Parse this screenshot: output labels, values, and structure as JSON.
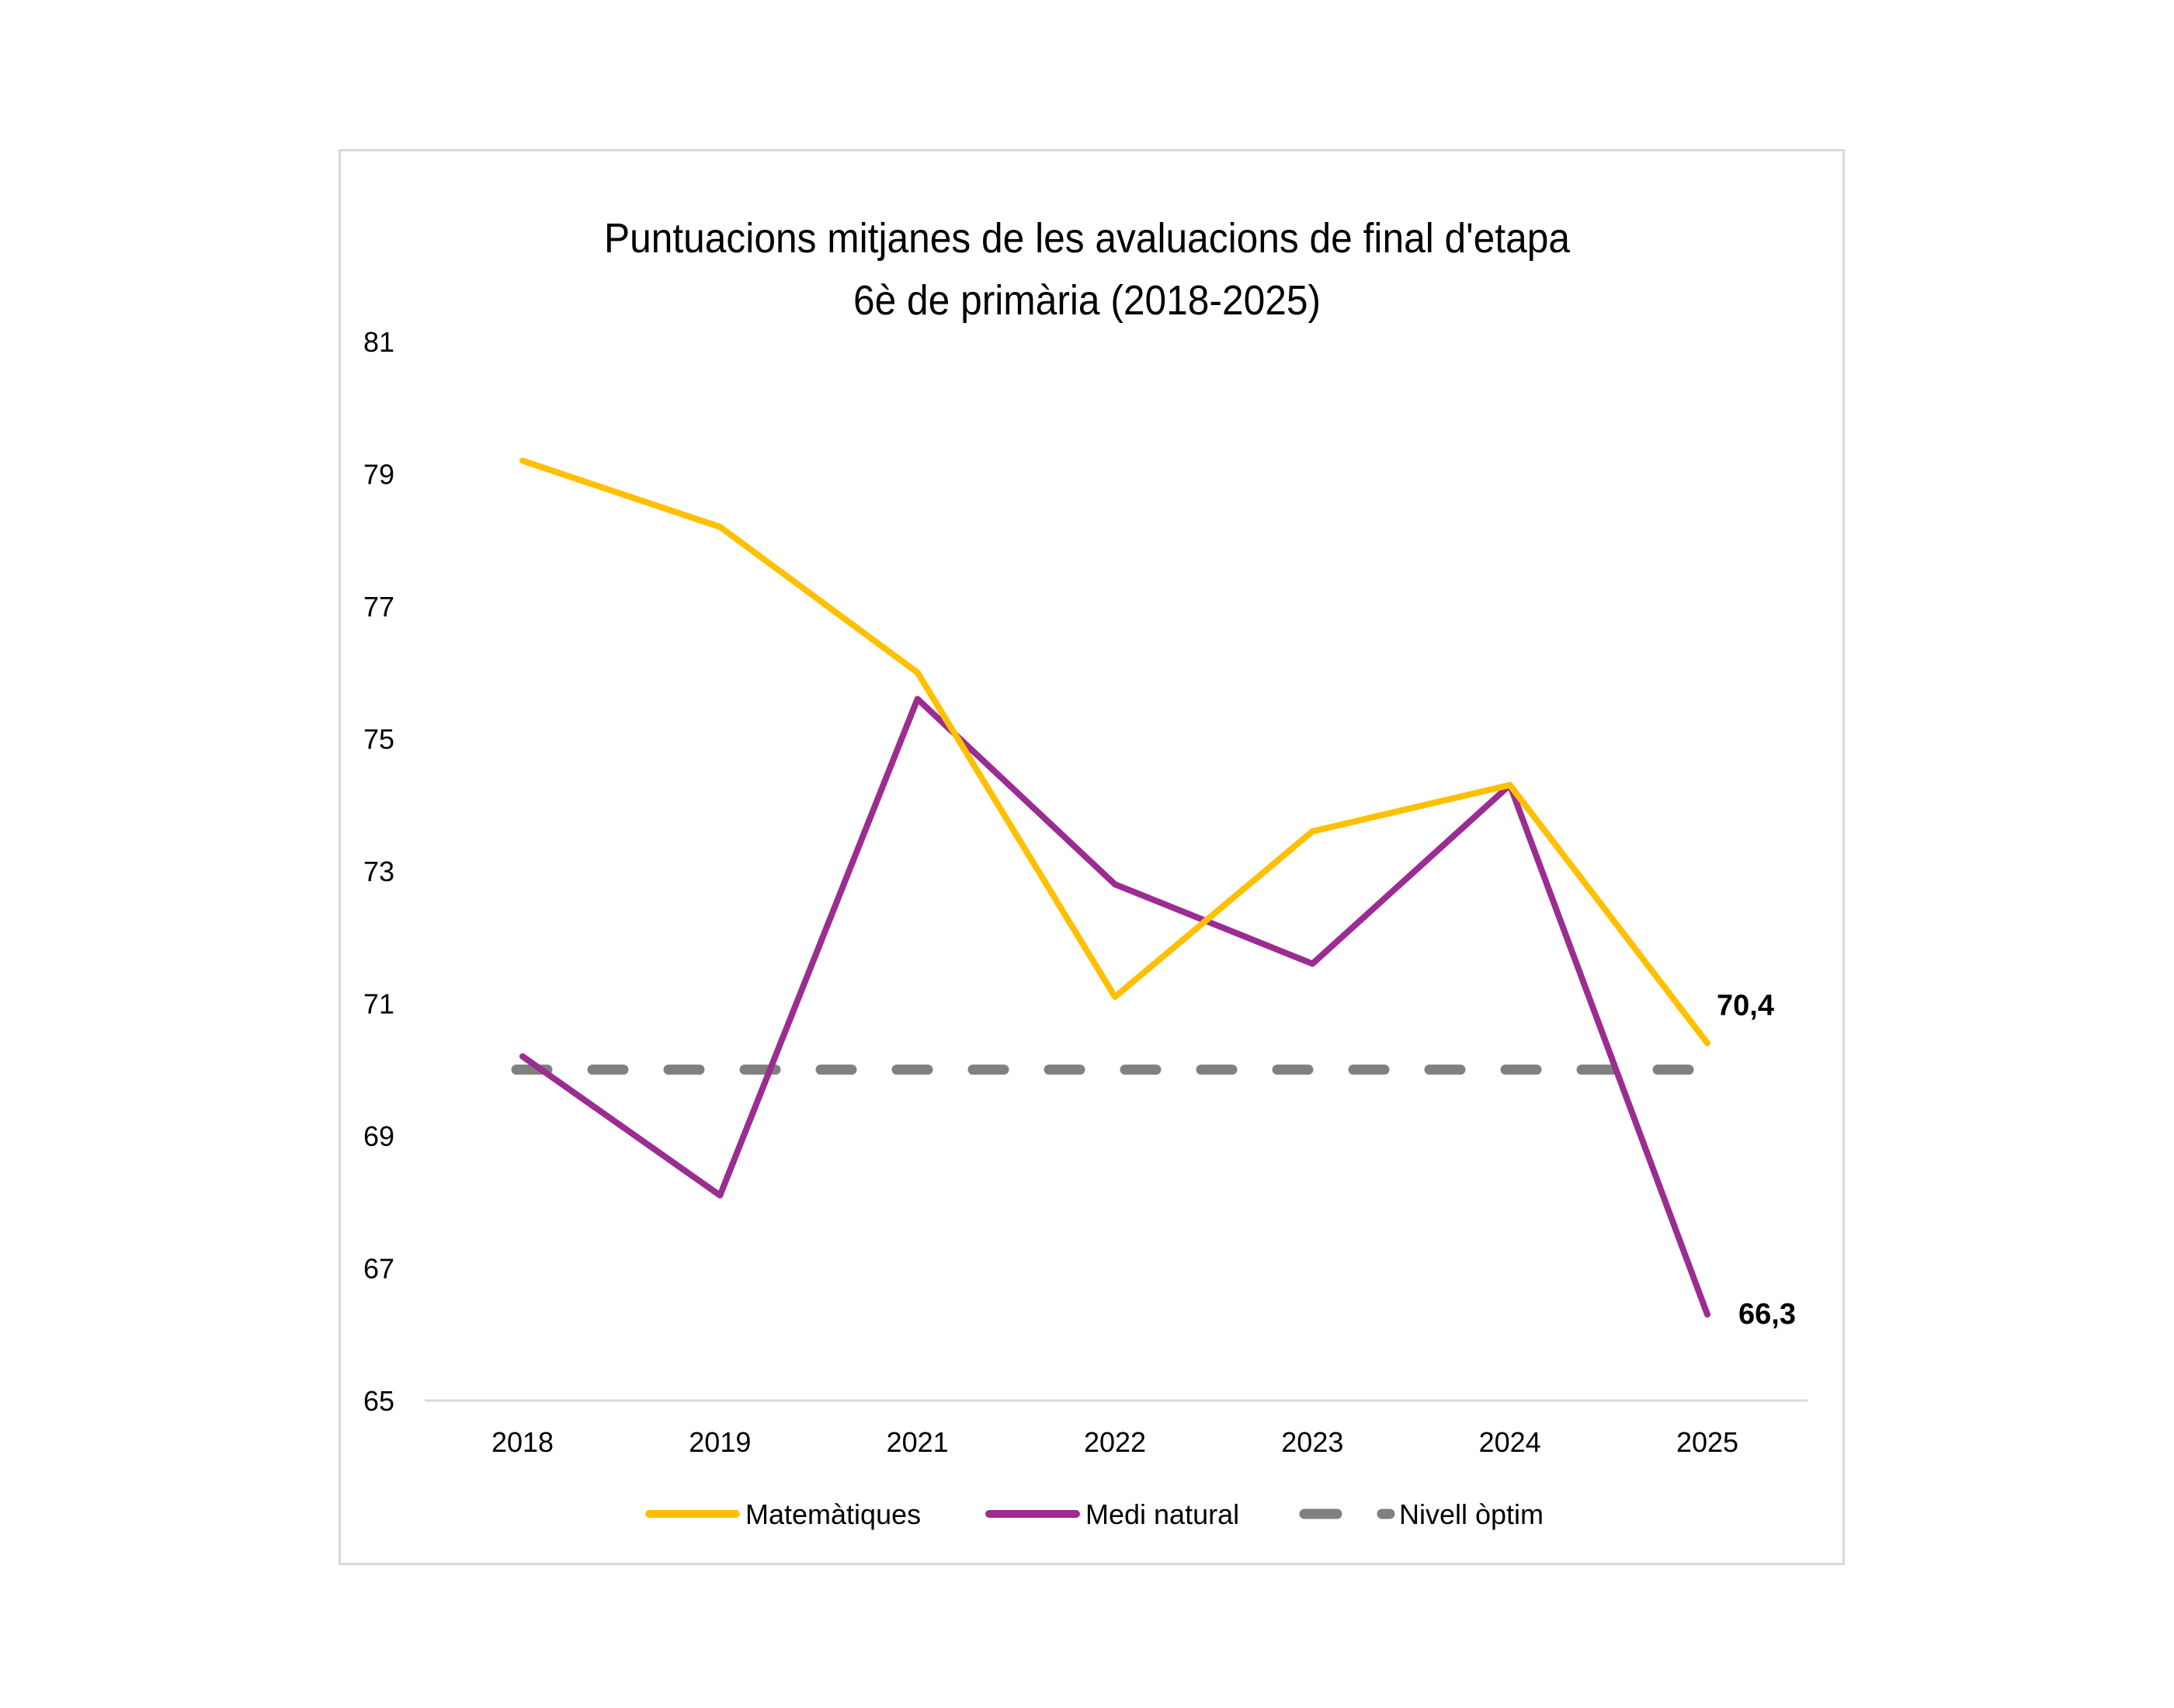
{
  "chart_data": {
    "type": "line",
    "title": "Puntuacions mitjanes de les avaluacions de final d'etapa",
    "subtitle": "6è de primària (2018-2025)",
    "categories": [
      "2018",
      "2019",
      "2021",
      "2022",
      "2023",
      "2024",
      "2025"
    ],
    "ylim": [
      65,
      81
    ],
    "yticks": [
      65,
      67,
      69,
      71,
      73,
      75,
      77,
      79,
      81
    ],
    "grid": false,
    "legend_position": "bottom",
    "series": [
      {
        "name": "Matemàtiques",
        "color": "#FFC000",
        "style": "solid",
        "values": [
          79.2,
          78.2,
          76.0,
          71.1,
          73.6,
          74.3,
          70.4
        ],
        "end_label": "70,4"
      },
      {
        "name": "Medi natural",
        "color": "#9B2C91",
        "style": "solid",
        "values": [
          70.2,
          68.1,
          75.6,
          72.8,
          71.6,
          74.3,
          66.3
        ],
        "end_label": "66,3"
      },
      {
        "name": "Nivell òptim",
        "color": "#808080",
        "style": "dashed",
        "values": [
          70,
          70,
          70,
          70,
          70,
          70,
          70
        ]
      }
    ]
  }
}
